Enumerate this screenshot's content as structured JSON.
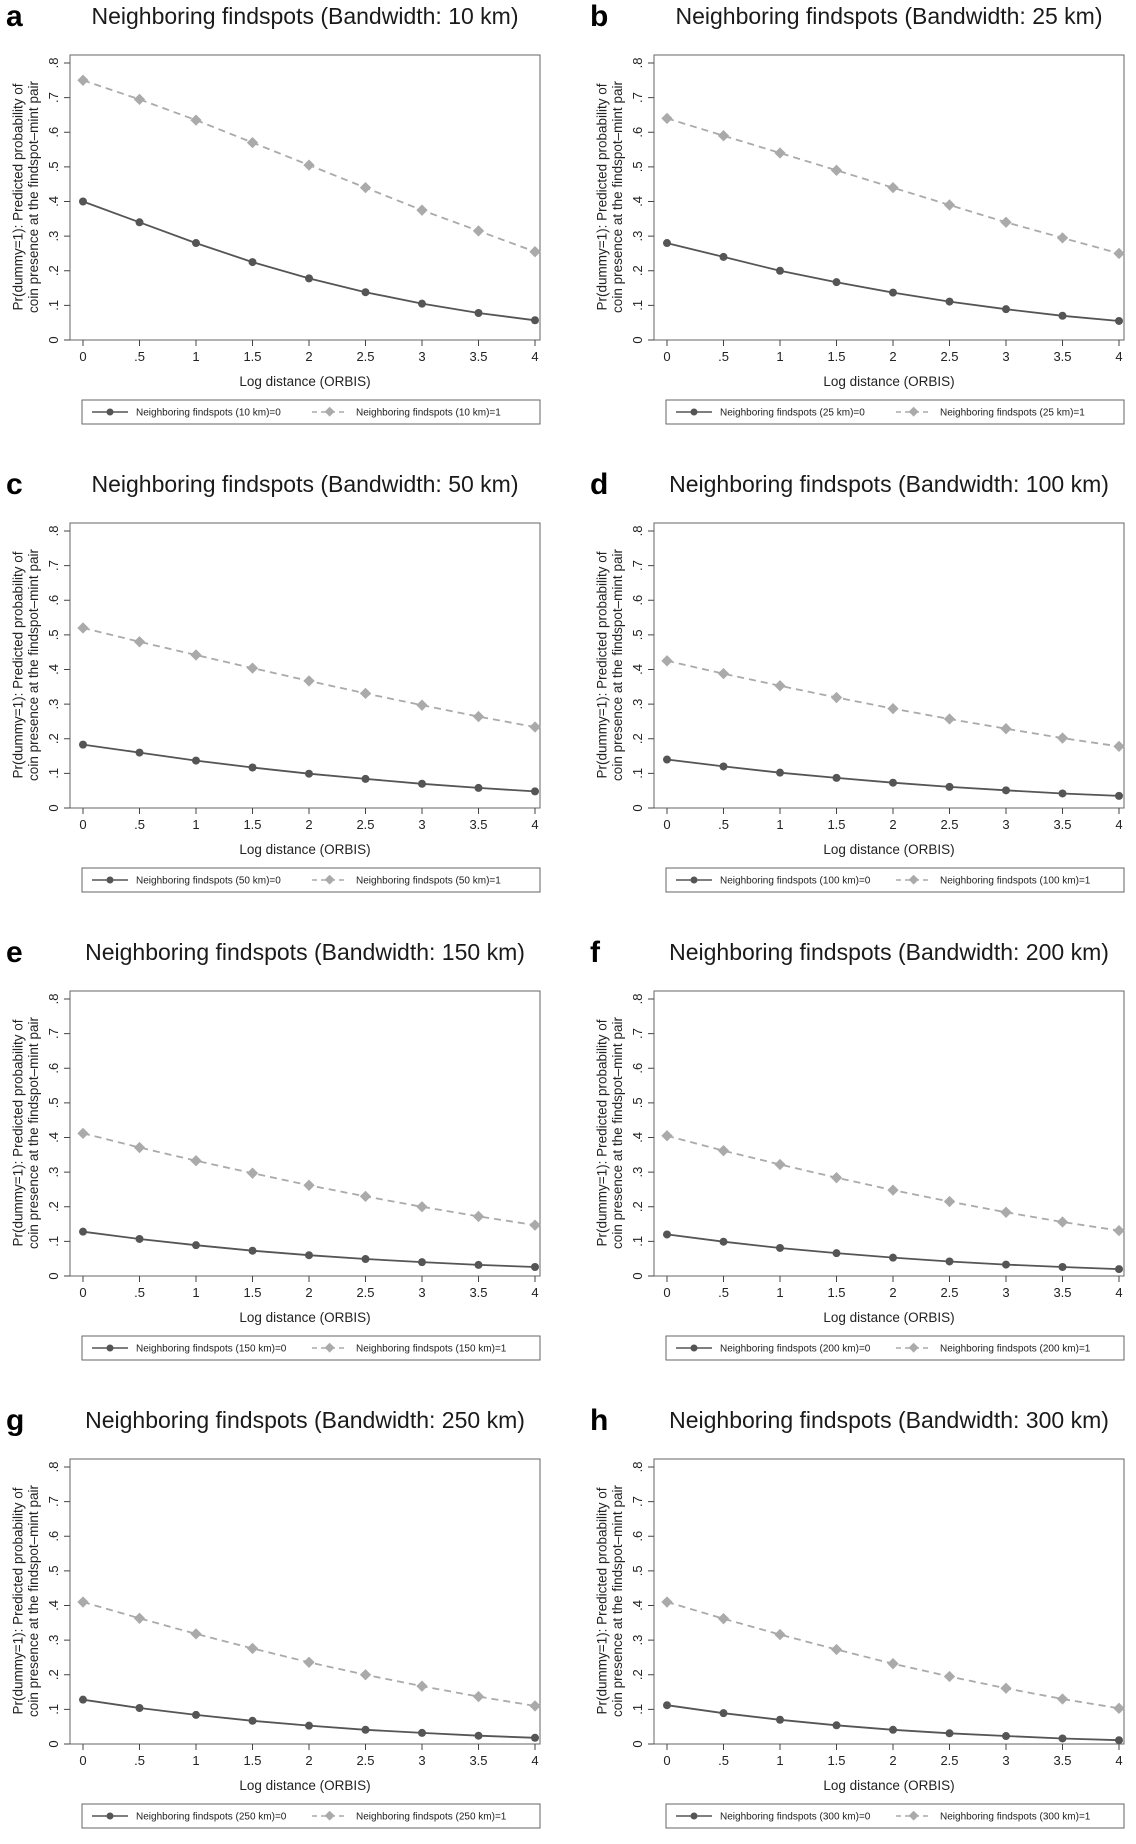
{
  "chart_data": [
    {
      "panel": "a",
      "type": "line",
      "title": "Neighboring findspots (Bandwidth: 10 km)",
      "xlabel": "Log distance (ORBIS)",
      "ylabel": [
        "Pr(dummy=1): Predicted probability of",
        "coin presence at the findspot–mint pair"
      ],
      "xlim": [
        0,
        4
      ],
      "ylim": [
        0,
        0.8
      ],
      "x": [
        0,
        0.5,
        1,
        1.5,
        2,
        2.5,
        3,
        3.5,
        4
      ],
      "xticks": [
        "0",
        ".5",
        "1",
        "1.5",
        "2",
        "2.5",
        "3",
        "3.5",
        "4"
      ],
      "yticks": [
        "0",
        ".1",
        ".2",
        ".3",
        ".4",
        ".5",
        ".6",
        ".7",
        ".8"
      ],
      "series": [
        {
          "name": "Neighboring findspots (10 km)=0",
          "values": [
            0.4,
            0.34,
            0.28,
            0.225,
            0.178,
            0.138,
            0.105,
            0.078,
            0.057
          ]
        },
        {
          "name": "Neighboring findspots (10 km)=1",
          "values": [
            0.75,
            0.695,
            0.635,
            0.57,
            0.505,
            0.44,
            0.375,
            0.315,
            0.255
          ]
        }
      ],
      "grid": false,
      "legend": "bottom"
    },
    {
      "panel": "b",
      "type": "line",
      "title": "Neighboring findspots (Bandwidth: 25 km)",
      "xlabel": "Log distance (ORBIS)",
      "ylabel": [
        "Pr(dummy=1): Predicted probability of",
        "coin presence at the findspot–mint pair"
      ],
      "xlim": [
        0,
        4
      ],
      "ylim": [
        0,
        0.8
      ],
      "x": [
        0,
        0.5,
        1,
        1.5,
        2,
        2.5,
        3,
        3.5,
        4
      ],
      "xticks": [
        "0",
        ".5",
        "1",
        "1.5",
        "2",
        "2.5",
        "3",
        "3.5",
        "4"
      ],
      "yticks": [
        "0",
        ".1",
        ".2",
        ".3",
        ".4",
        ".5",
        ".6",
        ".7",
        ".8"
      ],
      "series": [
        {
          "name": "Neighboring findspots (25 km)=0",
          "values": [
            0.28,
            0.24,
            0.2,
            0.167,
            0.137,
            0.111,
            0.089,
            0.07,
            0.055
          ]
        },
        {
          "name": "Neighboring findspots (25 km)=1",
          "values": [
            0.64,
            0.59,
            0.54,
            0.49,
            0.44,
            0.39,
            0.34,
            0.295,
            0.25
          ]
        }
      ],
      "grid": false,
      "legend": "bottom"
    },
    {
      "panel": "c",
      "type": "line",
      "title": "Neighboring findspots (Bandwidth: 50 km)",
      "xlabel": "Log distance (ORBIS)",
      "ylabel": [
        "Pr(dummy=1): Predicted probability of",
        "coin presence at the findspot–mint pair"
      ],
      "xlim": [
        0,
        4
      ],
      "ylim": [
        0,
        0.8
      ],
      "x": [
        0,
        0.5,
        1,
        1.5,
        2,
        2.5,
        3,
        3.5,
        4
      ],
      "xticks": [
        "0",
        ".5",
        "1",
        "1.5",
        "2",
        "2.5",
        "3",
        "3.5",
        "4"
      ],
      "yticks": [
        "0",
        ".1",
        ".2",
        ".3",
        ".4",
        ".5",
        ".6",
        ".7",
        ".8"
      ],
      "series": [
        {
          "name": "Neighboring findspots (50 km)=0",
          "values": [
            0.183,
            0.16,
            0.137,
            0.117,
            0.099,
            0.084,
            0.07,
            0.058,
            0.048
          ]
        },
        {
          "name": "Neighboring findspots (50 km)=1",
          "values": [
            0.52,
            0.48,
            0.442,
            0.404,
            0.367,
            0.331,
            0.297,
            0.264,
            0.234
          ]
        }
      ],
      "grid": false,
      "legend": "bottom"
    },
    {
      "panel": "d",
      "type": "line",
      "title": "Neighboring findspots (Bandwidth: 100 km)",
      "xlabel": "Log distance (ORBIS)",
      "ylabel": [
        "Pr(dummy=1): Predicted probability of",
        "coin presence at the findspot–mint pair"
      ],
      "xlim": [
        0,
        4
      ],
      "ylim": [
        0,
        0.8
      ],
      "x": [
        0,
        0.5,
        1,
        1.5,
        2,
        2.5,
        3,
        3.5,
        4
      ],
      "xticks": [
        "0",
        ".5",
        "1",
        "1.5",
        "2",
        "2.5",
        "3",
        "3.5",
        "4"
      ],
      "yticks": [
        "0",
        ".1",
        ".2",
        ".3",
        ".4",
        ".5",
        ".6",
        ".7",
        ".8"
      ],
      "series": [
        {
          "name": "Neighboring findspots (100 km)=0",
          "values": [
            0.14,
            0.12,
            0.102,
            0.087,
            0.073,
            0.061,
            0.051,
            0.042,
            0.035
          ]
        },
        {
          "name": "Neighboring findspots (100 km)=1",
          "values": [
            0.425,
            0.388,
            0.353,
            0.319,
            0.287,
            0.257,
            0.229,
            0.202,
            0.178
          ]
        }
      ],
      "grid": false,
      "legend": "bottom"
    },
    {
      "panel": "e",
      "type": "line",
      "title": "Neighboring findspots (Bandwidth: 150 km)",
      "xlabel": "Log distance (ORBIS)",
      "ylabel": [
        "Pr(dummy=1): Predicted probability of",
        "coin presence at the findspot–mint pair"
      ],
      "xlim": [
        0,
        4
      ],
      "ylim": [
        0,
        0.8
      ],
      "x": [
        0,
        0.5,
        1,
        1.5,
        2,
        2.5,
        3,
        3.5,
        4
      ],
      "xticks": [
        "0",
        ".5",
        "1",
        "1.5",
        "2",
        "2.5",
        "3",
        "3.5",
        "4"
      ],
      "yticks": [
        "0",
        ".1",
        ".2",
        ".3",
        ".4",
        ".5",
        ".6",
        ".7",
        ".8"
      ],
      "series": [
        {
          "name": "Neighboring findspots (150 km)=0",
          "values": [
            0.128,
            0.107,
            0.089,
            0.073,
            0.06,
            0.049,
            0.04,
            0.032,
            0.026
          ]
        },
        {
          "name": "Neighboring findspots (150 km)=1",
          "values": [
            0.412,
            0.371,
            0.333,
            0.297,
            0.262,
            0.23,
            0.2,
            0.172,
            0.147
          ]
        }
      ],
      "grid": false,
      "legend": "bottom"
    },
    {
      "panel": "f",
      "type": "line",
      "title": "Neighboring findspots (Bandwidth: 200 km)",
      "xlabel": "Log distance (ORBIS)",
      "ylabel": [
        "Pr(dummy=1): Predicted probability of",
        "coin presence at the findspot–mint pair"
      ],
      "xlim": [
        0,
        4
      ],
      "ylim": [
        0,
        0.8
      ],
      "x": [
        0,
        0.5,
        1,
        1.5,
        2,
        2.5,
        3,
        3.5,
        4
      ],
      "xticks": [
        "0",
        ".5",
        "1",
        "1.5",
        "2",
        "2.5",
        "3",
        "3.5",
        "4"
      ],
      "yticks": [
        "0",
        ".1",
        ".2",
        ".3",
        ".4",
        ".5",
        ".6",
        ".7",
        ".8"
      ],
      "series": [
        {
          "name": "Neighboring findspots (200 km)=0",
          "values": [
            0.12,
            0.099,
            0.081,
            0.066,
            0.053,
            0.042,
            0.033,
            0.026,
            0.02
          ]
        },
        {
          "name": "Neighboring findspots (200 km)=1",
          "values": [
            0.405,
            0.362,
            0.322,
            0.284,
            0.248,
            0.215,
            0.184,
            0.156,
            0.131
          ]
        }
      ],
      "grid": false,
      "legend": "bottom"
    },
    {
      "panel": "g",
      "type": "line",
      "title": "Neighboring findspots (Bandwidth: 250 km)",
      "xlabel": "Log distance (ORBIS)",
      "ylabel": [
        "Pr(dummy=1): Predicted probability of",
        "coin presence at the findspot–mint pair"
      ],
      "xlim": [
        0,
        4
      ],
      "ylim": [
        0,
        0.8
      ],
      "x": [
        0,
        0.5,
        1,
        1.5,
        2,
        2.5,
        3,
        3.5,
        4
      ],
      "xticks": [
        "0",
        ".5",
        "1",
        "1.5",
        "2",
        "2.5",
        "3",
        "3.5",
        "4"
      ],
      "yticks": [
        "0",
        ".1",
        ".2",
        ".3",
        ".4",
        ".5",
        ".6",
        ".7",
        ".8"
      ],
      "series": [
        {
          "name": "Neighboring findspots (250 km)=0",
          "values": [
            0.128,
            0.104,
            0.084,
            0.067,
            0.053,
            0.041,
            0.032,
            0.024,
            0.018
          ]
        },
        {
          "name": "Neighboring findspots (250 km)=1",
          "values": [
            0.41,
            0.363,
            0.318,
            0.276,
            0.236,
            0.2,
            0.167,
            0.137,
            0.11
          ]
        }
      ],
      "grid": false,
      "legend": "bottom"
    },
    {
      "panel": "h",
      "type": "line",
      "title": "Neighboring findspots (Bandwidth: 300 km)",
      "xlabel": "Log distance (ORBIS)",
      "ylabel": [
        "Pr(dummy=1): Predicted probability of",
        "coin presence at the findspot–mint pair"
      ],
      "xlim": [
        0,
        4
      ],
      "ylim": [
        0,
        0.8
      ],
      "x": [
        0,
        0.5,
        1,
        1.5,
        2,
        2.5,
        3,
        3.5,
        4
      ],
      "xticks": [
        "0",
        ".5",
        "1",
        "1.5",
        "2",
        "2.5",
        "3",
        "3.5",
        "4"
      ],
      "yticks": [
        "0",
        ".1",
        ".2",
        ".3",
        ".4",
        ".5",
        ".6",
        ".7",
        ".8"
      ],
      "series": [
        {
          "name": "Neighboring findspots (300 km)=0",
          "values": [
            0.112,
            0.089,
            0.07,
            0.054,
            0.041,
            0.031,
            0.023,
            0.016,
            0.011
          ]
        },
        {
          "name": "Neighboring findspots (300 km)=1",
          "values": [
            0.41,
            0.362,
            0.316,
            0.273,
            0.232,
            0.195,
            0.161,
            0.13,
            0.103
          ]
        }
      ],
      "grid": false,
      "legend": "bottom"
    }
  ],
  "style": {
    "series_colors": [
      "#555555",
      "#aaaaaa"
    ],
    "series_dash": [
      "solid",
      "dashed"
    ],
    "frame_color": "#666666"
  }
}
